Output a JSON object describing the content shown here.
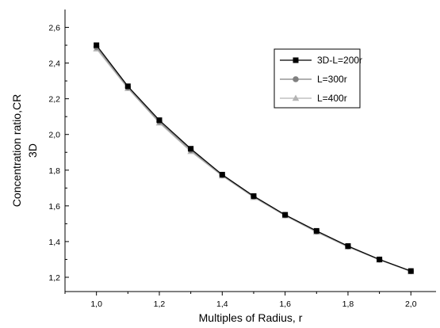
{
  "chart_data": {
    "type": "line",
    "xlabel": "Multiples of Radius, r",
    "ylabel": "Concentration ratio,CR",
    "ylabel_sub": "3D",
    "xlim": [
      0.9,
      2.08
    ],
    "ylim": [
      1.12,
      2.7
    ],
    "x_ticks": [
      1.0,
      1.2,
      1.4,
      1.6,
      1.8,
      2.0
    ],
    "x_tick_labels": [
      "1,0",
      "1,2",
      "1,4",
      "1,6",
      "1,8",
      "2,0"
    ],
    "y_ticks": [
      1.2,
      1.4,
      1.6,
      1.8,
      2.0,
      2.2,
      2.4,
      2.6
    ],
    "y_tick_labels": [
      "1,2",
      "1,4",
      "1,6",
      "1,8",
      "2,0",
      "2,2",
      "2,4",
      "2,6"
    ],
    "x": [
      1.0,
      1.1,
      1.2,
      1.3,
      1.4,
      1.5,
      1.6,
      1.7,
      1.8,
      1.9,
      2.0
    ],
    "series": [
      {
        "name": "3D-L=200r",
        "color": "#000000",
        "marker": "square",
        "values": [
          2.5,
          2.27,
          2.08,
          1.92,
          1.775,
          1.655,
          1.55,
          1.46,
          1.375,
          1.3,
          1.235
        ]
      },
      {
        "name": "L=300r",
        "color": "#808080",
        "marker": "circle",
        "values": [
          2.49,
          2.265,
          2.072,
          1.913,
          1.772,
          1.652,
          1.548,
          1.457,
          1.373,
          1.299,
          1.234
        ]
      },
      {
        "name": "L=400r",
        "color": "#b4b4b4",
        "marker": "triangle",
        "values": [
          2.48,
          2.258,
          2.065,
          1.905,
          1.768,
          1.648,
          1.545,
          1.453,
          1.37,
          1.297,
          1.232
        ]
      }
    ],
    "legend_position": "top-right",
    "grid": false
  }
}
